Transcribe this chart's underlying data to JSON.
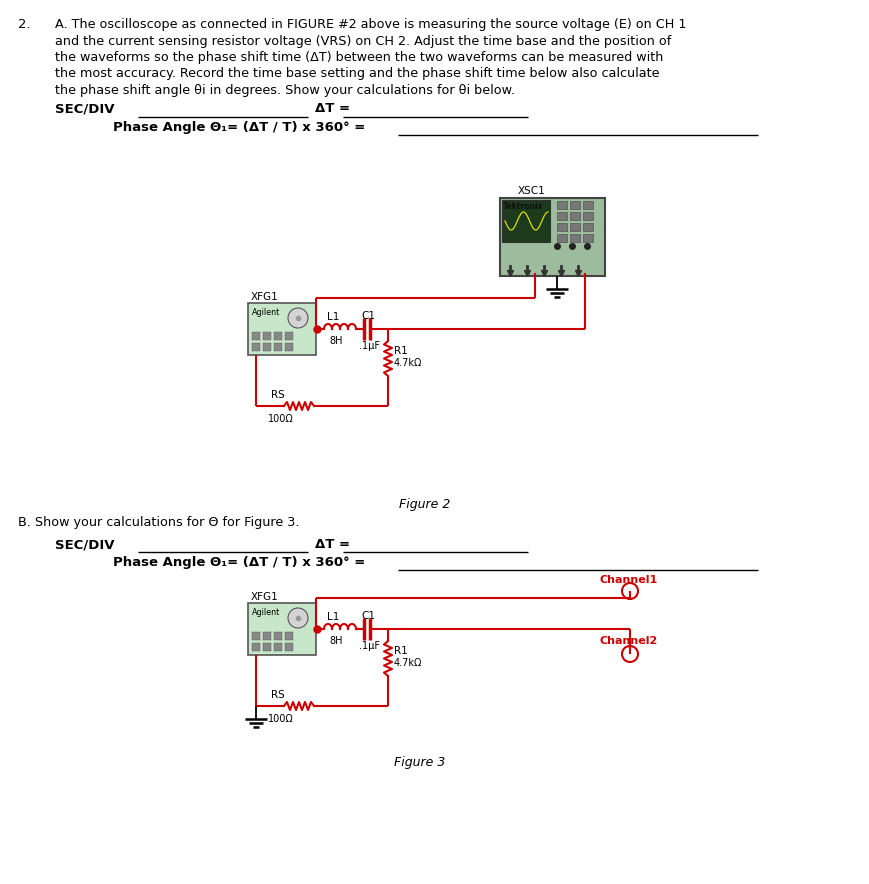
{
  "bg_color": "#ffffff",
  "text_color": "#000000",
  "red_color": "#cc0000",
  "green_bg": "#c8e6c9",
  "part_a_lines": [
    "A. The oscilloscope as connected in FIGURE #2 above is measuring the source voltage (E) on CH 1",
    "and the current sensing resistor voltage (VRS) on CH 2. Adjust the time base and the position of",
    "the waveforms so the phase shift time (ΔT) between the two waveforms can be measured with",
    "the most accuracy. Record the time base setting and the phase shift time below also calculate",
    "the phase shift angle θi in degrees. Show your calculations for θi below."
  ],
  "fig2_caption": "Figure 2",
  "fig3_caption": "Figure 3",
  "part_b_line": "B. Show your calculations for Θ for Figure 3.",
  "channel1_label": "Channel1",
  "channel2_label": "Channel2",
  "xsc1_label": "XSC1",
  "xfg1_label": "XFG1",
  "tektronix_label": "Tektronix",
  "agilent_label": "Agilent",
  "l1_label": "L1",
  "l1_val": "8H",
  "c1_label": "C1",
  "c1_val": ".1μF",
  "r1_label": "R1",
  "r1_val": "4.7kΩ",
  "rs_label": "RS",
  "rs_val": "100Ω"
}
